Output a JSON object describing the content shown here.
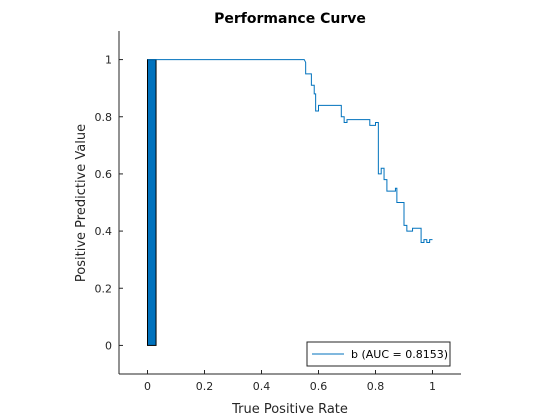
{
  "chart_data": {
    "type": "line",
    "title": "Performance Curve",
    "xlabel": "True Positive Rate",
    "ylabel": "Positive Predictive Value",
    "xlim": [
      -0.1,
      1.1
    ],
    "ylim": [
      -0.1,
      1.1
    ],
    "xticks": [
      0,
      0.2,
      0.4,
      0.6,
      0.8,
      1
    ],
    "yticks": [
      0,
      0.2,
      0.4,
      0.6,
      0.8,
      1
    ],
    "xtick_labels": [
      "0",
      "0.2",
      "0.4",
      "0.6",
      "0.8",
      "1"
    ],
    "ytick_labels": [
      "0",
      "0.2",
      "0.4",
      "0.6",
      "0.8",
      "1"
    ],
    "grid": false,
    "legend_position": "bottom-right",
    "series": [
      {
        "name": "b (AUC = 0.8153)",
        "color": "#0072BD",
        "x": [
          0,
          0.55,
          0.555,
          0.555,
          0.575,
          0.575,
          0.585,
          0.585,
          0.59,
          0.59,
          0.6,
          0.6,
          0.68,
          0.68,
          0.69,
          0.69,
          0.7,
          0.7,
          0.78,
          0.78,
          0.8,
          0.8,
          0.81,
          0.81,
          0.82,
          0.82,
          0.83,
          0.83,
          0.84,
          0.84,
          0.87,
          0.87,
          0.875,
          0.875,
          0.9,
          0.9,
          0.91,
          0.91,
          0.93,
          0.93,
          0.96,
          0.96,
          0.97,
          0.97,
          0.98,
          0.98,
          0.99,
          0.99,
          1.0
        ],
        "y": [
          1.0,
          1.0,
          0.99,
          0.95,
          0.95,
          0.91,
          0.91,
          0.88,
          0.88,
          0.82,
          0.82,
          0.84,
          0.84,
          0.8,
          0.8,
          0.78,
          0.78,
          0.79,
          0.79,
          0.77,
          0.77,
          0.78,
          0.78,
          0.6,
          0.6,
          0.62,
          0.62,
          0.58,
          0.58,
          0.54,
          0.54,
          0.55,
          0.55,
          0.5,
          0.5,
          0.42,
          0.42,
          0.4,
          0.4,
          0.41,
          0.41,
          0.36,
          0.36,
          0.37,
          0.37,
          0.36,
          0.36,
          0.37,
          0.37
        ]
      }
    ],
    "bar": {
      "x_range": [
        0,
        0.03
      ],
      "y_range": [
        0,
        1
      ],
      "color": "#0072BD"
    }
  }
}
